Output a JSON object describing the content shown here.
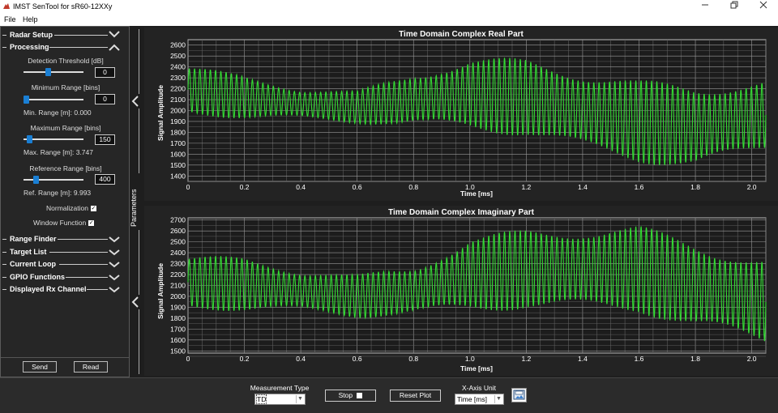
{
  "window": {
    "title": "IMST SenTool for sR60-12XXy",
    "accent_color": "#c0392b"
  },
  "menu": [
    "File",
    "Help"
  ],
  "panel": {
    "sections_top": [
      "Radar Setup",
      "Processing"
    ],
    "detection_threshold": {
      "label": "Detection Threshold [dB]",
      "value": "0",
      "slider_fraction": 0.4
    },
    "minimum_range": {
      "label": "Minimum Range [bins]",
      "value": "0",
      "slider_fraction": 0.0,
      "derived": "Min. Range [m]: 0.000"
    },
    "maximum_range": {
      "label": "Maximum Range [bins]",
      "value": "150",
      "slider_fraction": 0.06,
      "derived": "Max. Range [m]: 3.747"
    },
    "reference_range": {
      "label": "Reference Range [bins]",
      "value": "400",
      "slider_fraction": 0.18,
      "derived": "Ref. Range [m]: 9.993"
    },
    "normalization": {
      "label": "Normalization",
      "checked": true
    },
    "window_function": {
      "label": "Window Function",
      "checked": true
    },
    "sections_bottom": [
      "Range Finder",
      "Target List",
      "Current Loop",
      "GPIO Functions",
      "Displayed Rx Channel"
    ],
    "send_label": "Send",
    "read_label": "Read",
    "parameters_label": "Parameters"
  },
  "chart_data": [
    {
      "type": "line",
      "title": "Time Domain Complex Real Part",
      "xlabel": "Time [ms]",
      "ylabel": "Signal Amplitude",
      "xlim": [
        0,
        2.05
      ],
      "ylim": [
        1350,
        2650
      ],
      "xticks": [
        "0",
        "0.2",
        "0.4",
        "0.6",
        "0.8",
        "1.0",
        "1.2",
        "1.4",
        "1.6",
        "1.8",
        "2.0"
      ],
      "xtick_values": [
        0,
        0.2,
        0.4,
        0.6,
        0.8,
        1.0,
        1.2,
        1.4,
        1.6,
        1.8,
        2.0
      ],
      "yticks": [
        "2600",
        "2500",
        "2400",
        "2300",
        "2200",
        "2100",
        "2000",
        "1900",
        "1800",
        "1700",
        "1600",
        "1500",
        "1400"
      ],
      "ytick_values": [
        2600,
        2500,
        2400,
        2300,
        2200,
        2100,
        2000,
        1900,
        1800,
        1700,
        1600,
        1500,
        1400
      ],
      "grid": true,
      "line_color": "#33dd33",
      "series": [
        {
          "cycles": 110,
          "envelope": [
            {
              "x": 0.0,
              "center": 2190,
              "amp": 230
            },
            {
              "x": 0.2,
              "center": 2120,
              "amp": 200
            },
            {
              "x": 0.4,
              "center": 2060,
              "amp": 150
            },
            {
              "x": 0.6,
              "center": 2030,
              "amp": 150
            },
            {
              "x": 0.8,
              "center": 2100,
              "amp": 250
            },
            {
              "x": 1.0,
              "center": 2150,
              "amp": 340
            },
            {
              "x": 1.2,
              "center": 2120,
              "amp": 360
            },
            {
              "x": 1.4,
              "center": 2000,
              "amp": 380
            },
            {
              "x": 1.6,
              "center": 1900,
              "amp": 380
            },
            {
              "x": 1.8,
              "center": 1850,
              "amp": 400
            },
            {
              "x": 2.05,
              "center": 1960,
              "amp": 330
            }
          ]
        }
      ]
    },
    {
      "type": "line",
      "title": "Time Domain Complex Imaginary Part",
      "xlabel": "Time [ms]",
      "ylabel": "Signal Amplitude",
      "xlim": [
        0,
        2.05
      ],
      "ylim": [
        1480,
        2720
      ],
      "xticks": [
        "0",
        "0.2",
        "0.4",
        "0.6",
        "0.8",
        "1.0",
        "1.2",
        "1.4",
        "1.6",
        "1.8",
        "2.0"
      ],
      "xtick_values": [
        0,
        0.2,
        0.4,
        0.6,
        0.8,
        1.0,
        1.2,
        1.4,
        1.6,
        1.8,
        2.0
      ],
      "yticks": [
        "2700",
        "2600",
        "2500",
        "2400",
        "2300",
        "2200",
        "2100",
        "2000",
        "1900",
        "1800",
        "1700",
        "1600",
        "1500"
      ],
      "ytick_values": [
        2700,
        2600,
        2500,
        2400,
        2300,
        2200,
        2100,
        2000,
        1900,
        1800,
        1700,
        1600,
        1500
      ],
      "grid": true,
      "line_color": "#33dd33",
      "series": [
        {
          "cycles": 110,
          "envelope": [
            {
              "x": 0.0,
              "center": 2130,
              "amp": 250
            },
            {
              "x": 0.2,
              "center": 2110,
              "amp": 250
            },
            {
              "x": 0.4,
              "center": 2050,
              "amp": 200
            },
            {
              "x": 0.6,
              "center": 2000,
              "amp": 200
            },
            {
              "x": 0.8,
              "center": 2050,
              "amp": 230
            },
            {
              "x": 1.0,
              "center": 2200,
              "amp": 350
            },
            {
              "x": 1.2,
              "center": 2250,
              "amp": 370
            },
            {
              "x": 1.4,
              "center": 2250,
              "amp": 400
            },
            {
              "x": 1.6,
              "center": 2250,
              "amp": 400
            },
            {
              "x": 1.8,
              "center": 2100,
              "amp": 420
            },
            {
              "x": 2.05,
              "center": 1950,
              "amp": 400
            }
          ]
        }
      ]
    }
  ],
  "bottom": {
    "measurement_type_label": "Measurement Type",
    "measurement_type_value": "TD",
    "stop_label": "Stop",
    "reset_plot_label": "Reset Plot",
    "xaxis_unit_label": "X-Axis Unit",
    "xaxis_unit_value": "Time [ms]"
  }
}
